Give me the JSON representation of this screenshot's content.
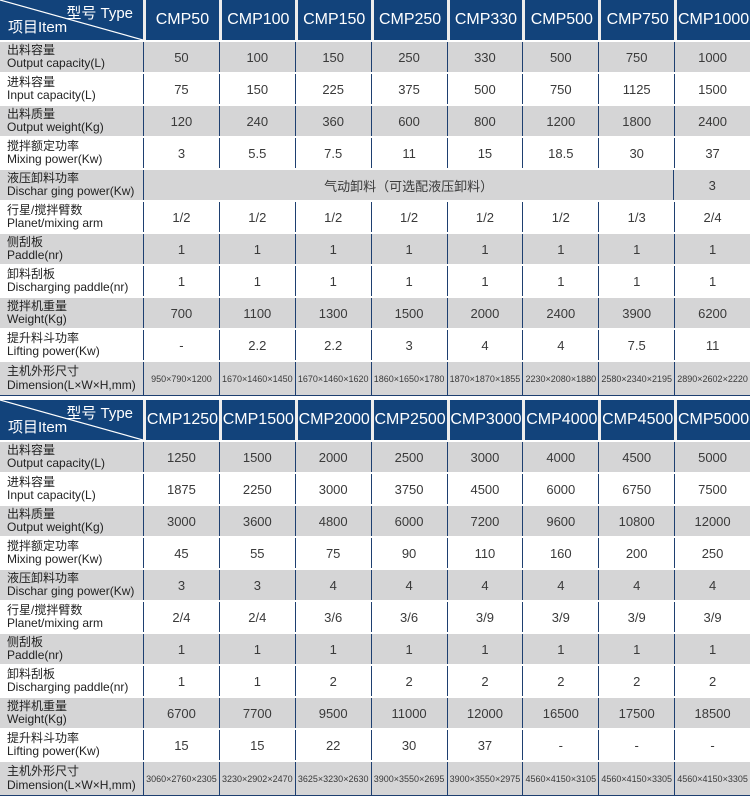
{
  "colors": {
    "header_bg": "#12437B",
    "grid_line": "#1E3F70",
    "row_alt_bg": "#D5D5D6",
    "row_bg": "#FFFFFF",
    "header_text": "#FFFFFF",
    "cell_text": "#3A3A3A"
  },
  "corner": {
    "type_label": "型号 Type",
    "item_label": "项目Item"
  },
  "tables": [
    {
      "columns": [
        "CMP50",
        "CMP100",
        "CMP150",
        "CMP250",
        "CMP330",
        "CMP500",
        "CMP750",
        "CMP1000"
      ],
      "rows": [
        {
          "zh": "出料容量",
          "en": "Output capacity(L)",
          "values": [
            "50",
            "100",
            "150",
            "250",
            "330",
            "500",
            "750",
            "1000"
          ]
        },
        {
          "zh": "进料容量",
          "en": "Input capacity(L)",
          "values": [
            "75",
            "150",
            "225",
            "375",
            "500",
            "750",
            "1125",
            "1500"
          ]
        },
        {
          "zh": "出料质量",
          "en": "Output weight(Kg)",
          "values": [
            "120",
            "240",
            "360",
            "600",
            "800",
            "1200",
            "1800",
            "2400"
          ]
        },
        {
          "zh": "搅拌额定功率",
          "en": "Mixing power(Kw)",
          "values": [
            "3",
            "5.5",
            "7.5",
            "11",
            "15",
            "18.5",
            "30",
            "37"
          ]
        },
        {
          "zh": "液压卸料功率",
          "en": "Dischar ging power(Kw)",
          "values": [
            {
              "span": 7,
              "text": "气动卸料（可选配液压卸料）"
            },
            "3"
          ]
        },
        {
          "zh": "行星/搅拌臂数",
          "en": "Planet/mixing arm",
          "values": [
            "1/2",
            "1/2",
            "1/2",
            "1/2",
            "1/2",
            "1/2",
            "1/3",
            "2/4"
          ]
        },
        {
          "zh": "侧刮板",
          "en": "Paddle(nr)",
          "values": [
            "1",
            "1",
            "1",
            "1",
            "1",
            "1",
            "1",
            "1"
          ]
        },
        {
          "zh": "卸料刮板",
          "en": "Discharging paddle(nr)",
          "values": [
            "1",
            "1",
            "1",
            "1",
            "1",
            "1",
            "1",
            "1"
          ]
        },
        {
          "zh": "搅拌机重量",
          "en": "Weight(Kg)",
          "values": [
            "700",
            "1100",
            "1300",
            "1500",
            "2000",
            "2400",
            "3900",
            "6200"
          ]
        },
        {
          "zh": "提升料斗功率",
          "en": "Lifting power(Kw)",
          "values": [
            "-",
            "2.2",
            "2.2",
            "3",
            "4",
            "4",
            "7.5",
            "11"
          ]
        },
        {
          "zh": "主机外形尺寸",
          "en": "Dimension(L×W×H,mm)",
          "dim": true,
          "values": [
            "950×790×1200",
            "1670×1460×1450",
            "1670×1460×1620",
            "1860×1650×1780",
            "1870×1870×1855",
            "2230×2080×1880",
            "2580×2340×2195",
            "2890×2602×2220"
          ]
        }
      ]
    },
    {
      "columns": [
        "CMP1250",
        "CMP1500",
        "CMP2000",
        "CMP2500",
        "CMP3000",
        "CMP4000",
        "CMP4500",
        "CMP5000"
      ],
      "rows": [
        {
          "zh": "出料容量",
          "en": "Output capacity(L)",
          "values": [
            "1250",
            "1500",
            "2000",
            "2500",
            "3000",
            "4000",
            "4500",
            "5000"
          ]
        },
        {
          "zh": "进料容量",
          "en": "Input capacity(L)",
          "values": [
            "1875",
            "2250",
            "3000",
            "3750",
            "4500",
            "6000",
            "6750",
            "7500"
          ]
        },
        {
          "zh": "出料质量",
          "en": "Output weight(Kg)",
          "values": [
            "3000",
            "3600",
            "4800",
            "6000",
            "7200",
            "9600",
            "10800",
            "12000"
          ]
        },
        {
          "zh": "搅拌额定功率",
          "en": "Mixing power(Kw)",
          "values": [
            "45",
            "55",
            "75",
            "90",
            "110",
            "160",
            "200",
            "250"
          ]
        },
        {
          "zh": "液压卸料功率",
          "en": "Dischar ging power(Kw)",
          "values": [
            "3",
            "3",
            "4",
            "4",
            "4",
            "4",
            "4",
            "4"
          ]
        },
        {
          "zh": "行星/搅拌臂数",
          "en": "Planet/mixing arm",
          "values": [
            "2/4",
            "2/4",
            "3/6",
            "3/6",
            "3/9",
            "3/9",
            "3/9",
            "3/9"
          ]
        },
        {
          "zh": "侧刮板",
          "en": "Paddle(nr)",
          "values": [
            "1",
            "1",
            "1",
            "1",
            "1",
            "1",
            "1",
            "1"
          ]
        },
        {
          "zh": "卸料刮板",
          "en": "Discharging paddle(nr)",
          "values": [
            "1",
            "1",
            "2",
            "2",
            "2",
            "2",
            "2",
            "2"
          ]
        },
        {
          "zh": "搅拌机重量",
          "en": "Weight(Kg)",
          "values": [
            "6700",
            "7700",
            "9500",
            "11000",
            "12000",
            "16500",
            "17500",
            "18500"
          ]
        },
        {
          "zh": "提升料斗功率",
          "en": "Lifting power(Kw)",
          "values": [
            "15",
            "15",
            "22",
            "30",
            "37",
            "-",
            "-",
            "-"
          ]
        },
        {
          "zh": "主机外形尺寸",
          "en": "Dimension(L×W×H,mm)",
          "dim": true,
          "values": [
            "3060×2760×2305",
            "3230×2902×2470",
            "3625×3230×2630",
            "3900×3550×2695",
            "3900×3550×2975",
            "4560×4150×3105",
            "4560×4150×3305",
            "4560×4150×3305"
          ]
        }
      ]
    }
  ]
}
